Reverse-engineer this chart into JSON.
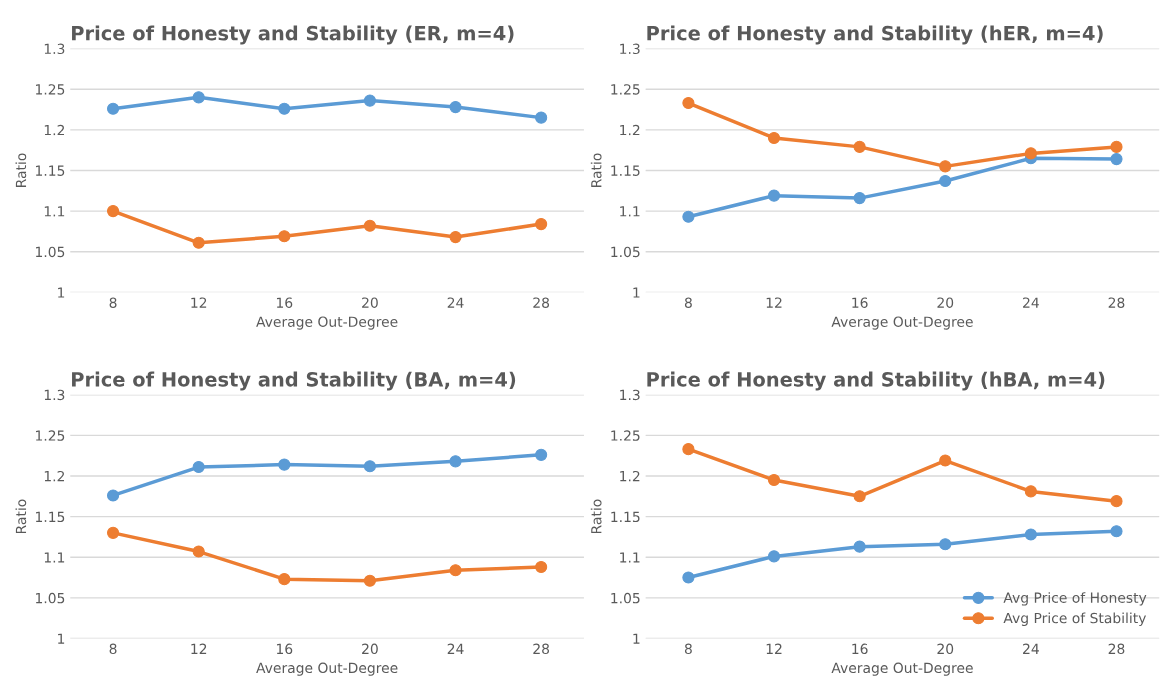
{
  "chart_data": [
    {
      "type": "line",
      "title": "Price of Honesty and Stability (ER, m=4)",
      "xlabel": "Average Out-Degree",
      "ylabel": "Ratio",
      "categories": [
        "8",
        "12",
        "16",
        "20",
        "24",
        "28"
      ],
      "ylim": [
        1,
        1.3
      ],
      "yticks": [
        {
          "value": 1,
          "label": "1"
        },
        1.05,
        {
          "value": 1.1,
          "label": "1.1"
        },
        1.15,
        {
          "value": 1.2,
          "label": "1.2"
        },
        1.25,
        {
          "value": 1.3,
          "label": "1.3"
        }
      ],
      "grid": "y",
      "marker": "circle",
      "line_style": "solid",
      "series": [
        {
          "color": "#5b9bd5",
          "values": [
            1.226,
            1.24,
            1.226,
            1.236,
            1.228,
            1.215
          ]
        },
        {
          "color": "#ed7d31",
          "values": [
            1.1,
            1.061,
            1.069,
            1.082,
            1.068,
            1.084
          ]
        }
      ]
    },
    {
      "type": "line",
      "title": "Price of Honesty and Stability (hER, m=4)",
      "xlabel": "Average Out-Degree",
      "ylabel": "Ratio",
      "categories": [
        "8",
        "12",
        "16",
        "20",
        "24",
        "28"
      ],
      "ylim": [
        1,
        1.3
      ],
      "yticks": [
        {
          "value": 1,
          "label": "1"
        },
        1.05,
        {
          "value": 1.1,
          "label": "1.1"
        },
        1.15,
        {
          "value": 1.2,
          "label": "1.2"
        },
        1.25,
        {
          "value": 1.3,
          "label": "1.3"
        }
      ],
      "grid": "y",
      "marker": "circle",
      "line_style": "solid",
      "series": [
        {
          "color": "#5b9bd5",
          "values": [
            1.093,
            1.119,
            1.116,
            1.137,
            1.165,
            1.164
          ]
        },
        {
          "color": "#ed7d31",
          "values": [
            1.233,
            1.19,
            1.179,
            1.155,
            1.171,
            1.179
          ]
        }
      ]
    },
    {
      "type": "line",
      "title": "Price of Honesty and Stability (BA, m=4)",
      "xlabel": "Average Out-Degree",
      "ylabel": "Ratio",
      "categories": [
        "8",
        "12",
        "16",
        "20",
        "24",
        "28"
      ],
      "ylim": [
        1,
        1.3
      ],
      "yticks": [
        {
          "value": 1,
          "label": "1"
        },
        1.05,
        {
          "value": 1.1,
          "label": "1.1"
        },
        1.15,
        {
          "value": 1.2,
          "label": "1.2"
        },
        1.25,
        {
          "value": 1.3,
          "label": "1.3"
        }
      ],
      "grid": "y",
      "marker": "circle",
      "line_style": "solid",
      "series": [
        {
          "color": "#5b9bd5",
          "values": [
            1.176,
            1.211,
            1.214,
            1.212,
            1.218,
            1.226
          ]
        },
        {
          "color": "#ed7d31",
          "values": [
            1.13,
            1.107,
            1.073,
            1.071,
            1.084,
            1.088
          ]
        }
      ]
    },
    {
      "type": "line",
      "title": "Price of Honesty and Stability (hBA, m=4)",
      "xlabel": "Average Out-Degree",
      "ylabel": "Ratio",
      "categories": [
        "8",
        "12",
        "16",
        "20",
        "24",
        "28"
      ],
      "ylim": [
        1,
        1.3
      ],
      "yticks": [
        {
          "value": 1,
          "label": "1"
        },
        1.05,
        {
          "value": 1.1,
          "label": "1.1"
        },
        1.15,
        {
          "value": 1.2,
          "label": "1.2"
        },
        1.25,
        {
          "value": 1.3,
          "label": "1.3"
        }
      ],
      "grid": "y",
      "marker": "circle",
      "line_style": "solid",
      "legend": "bottom right",
      "series": [
        {
          "name": "Avg Price of Honesty",
          "color": "#5b9bd5",
          "values": [
            1.075,
            1.101,
            1.113,
            1.116,
            1.128,
            1.132
          ]
        },
        {
          "name": "Avg Price of Stability",
          "color": "#ed7d31",
          "values": [
            1.233,
            1.195,
            1.175,
            1.219,
            1.181,
            1.169
          ]
        }
      ]
    }
  ]
}
